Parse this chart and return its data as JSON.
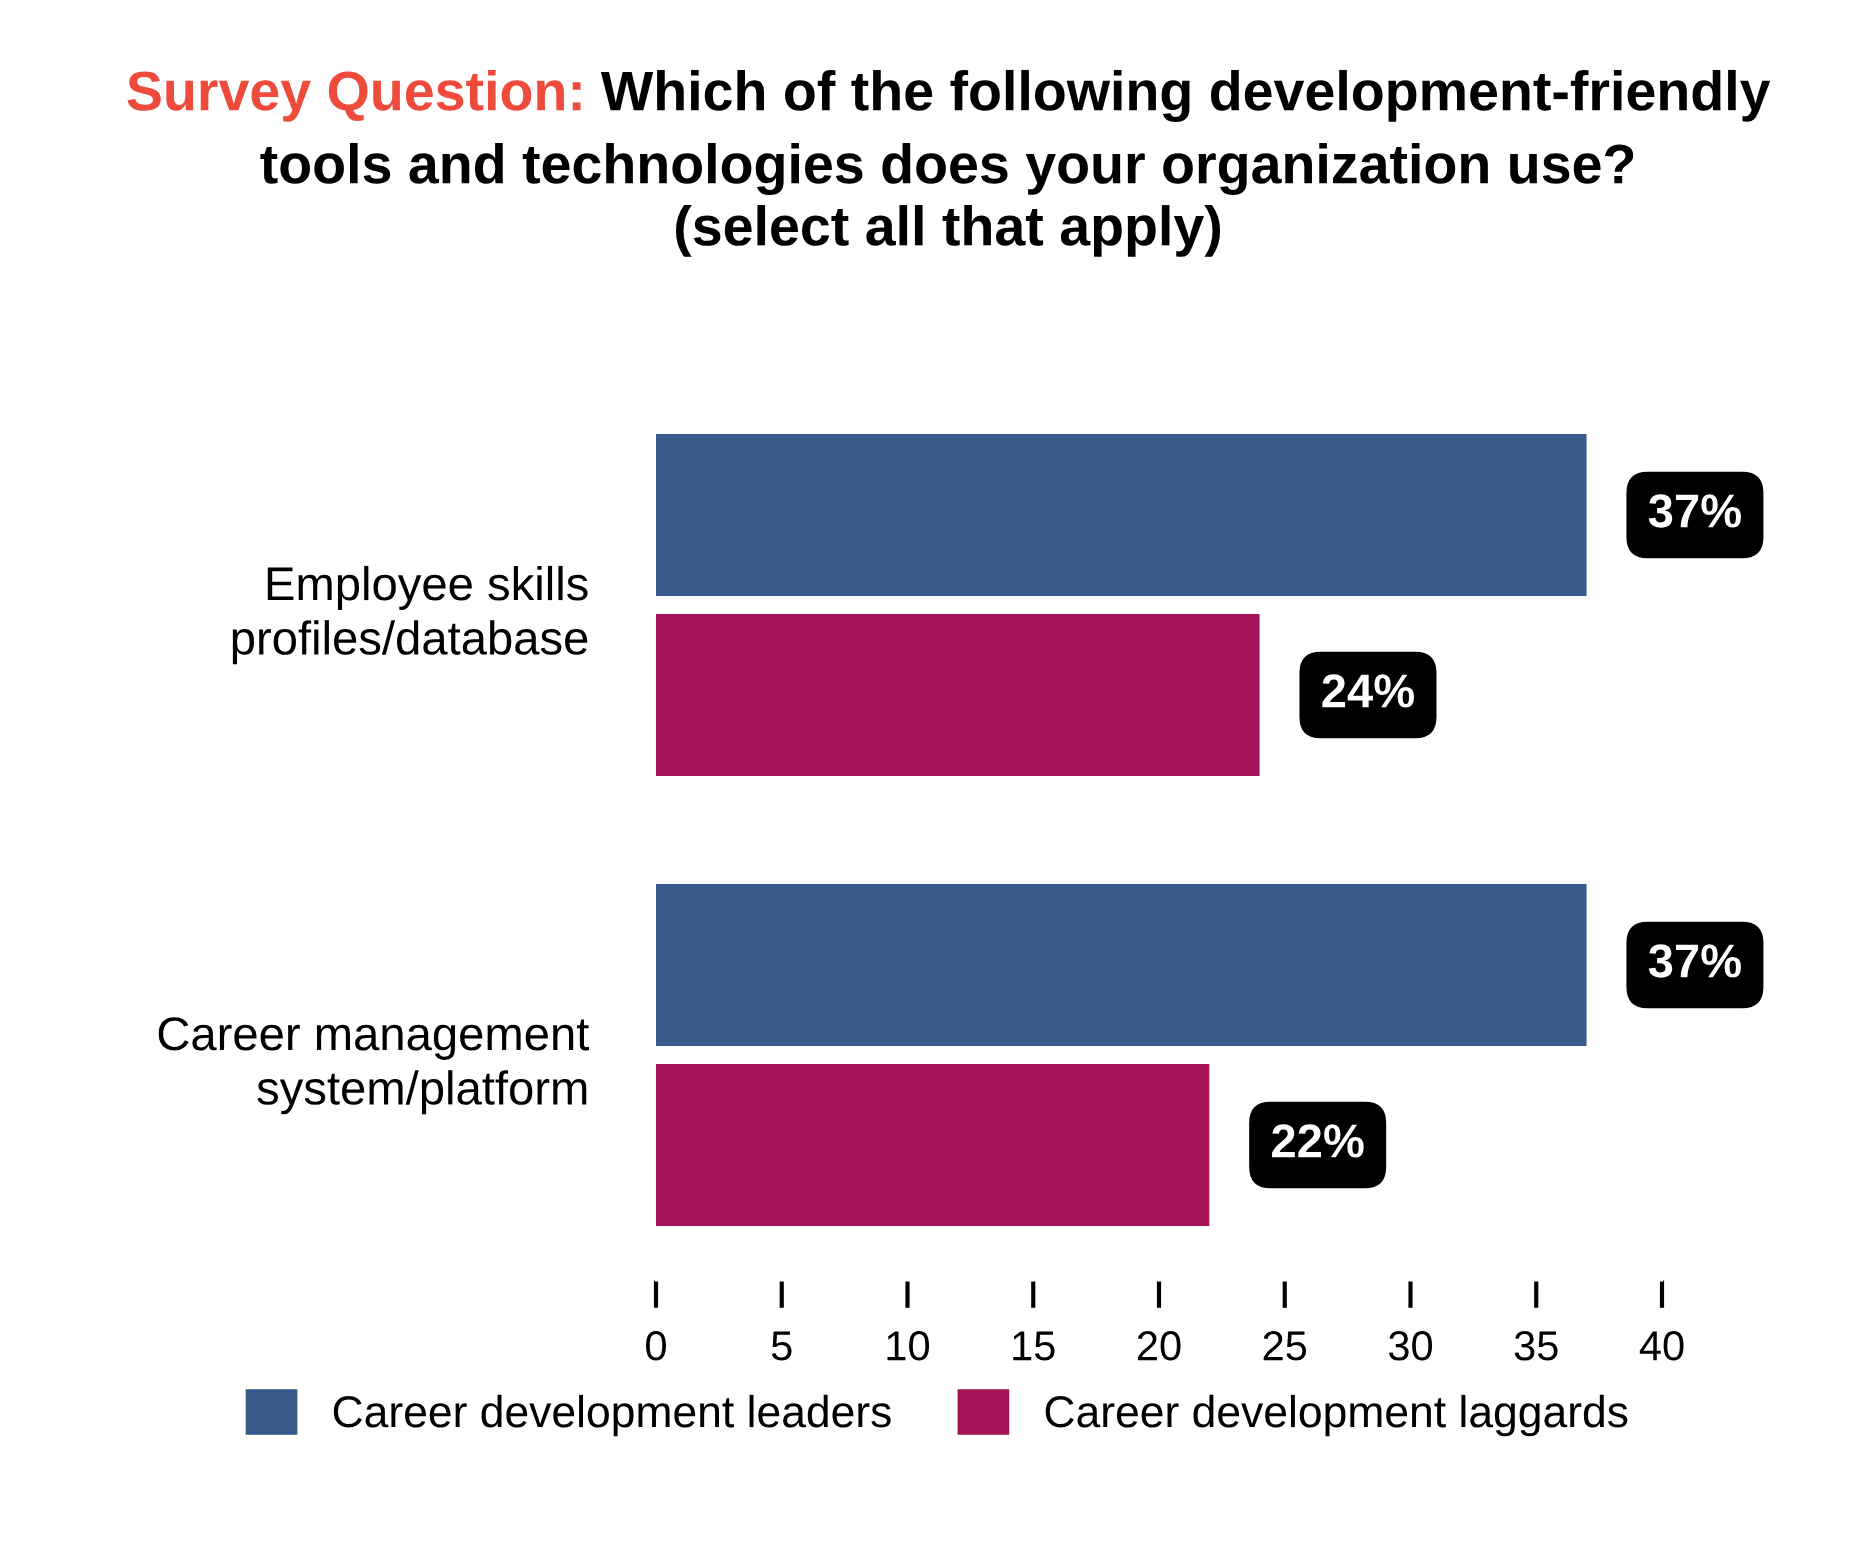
{
  "chart_data": {
    "type": "bar",
    "orientation": "horizontal",
    "title": "Survey Question: Which of the following development-friendly\ntools and technologies does your organization use?\n(select all that apply)",
    "categories": [
      "Employee skills\nprofiles/database",
      "Career management\nsystem/platform"
    ],
    "series": [
      {
        "name": "Career development leaders",
        "color": "#365b8a",
        "values": [
          37,
          37
        ],
        "value_labels": [
          "37%",
          "37%"
        ]
      },
      {
        "name": "Career development laggards",
        "color": "#a51257",
        "values": [
          24,
          22
        ],
        "value_labels": [
          "24%",
          "22%"
        ]
      }
    ],
    "xlim": [
      0,
      40
    ],
    "xticks": [
      0,
      5,
      10,
      15,
      20,
      25,
      30,
      35,
      40
    ],
    "grid": false,
    "legend": "bottom"
  }
}
